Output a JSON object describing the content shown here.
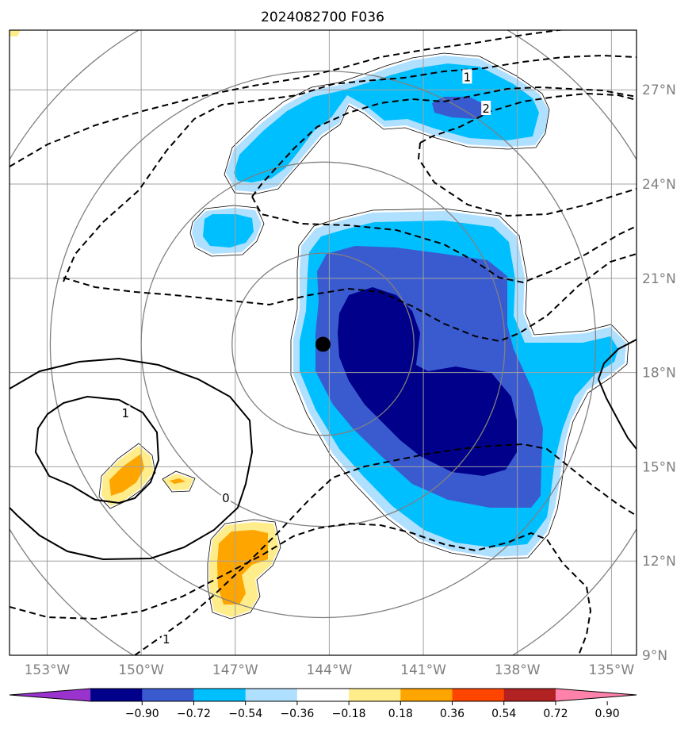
{
  "chart_data": {
    "type": "heatmap",
    "title": "2024082700 F036",
    "x_ticks": [
      "153°W",
      "150°W",
      "147°W",
      "144°W",
      "141°W",
      "138°W",
      "135°W"
    ],
    "y_ticks": [
      "27°N",
      "24°N",
      "21°N",
      "18°N",
      "15°N",
      "12°N",
      "9°N"
    ],
    "x_range": [
      -154.2,
      -134.2
    ],
    "y_range": [
      9,
      28.9
    ],
    "colorbar": {
      "ticks": [
        "−0.90",
        "−0.72",
        "−0.54",
        "−0.36",
        "−0.18",
        "0.18",
        "0.36",
        "0.54",
        "0.72",
        "0.90"
      ],
      "colors": [
        "#9a32cd",
        "#00008b",
        "#3a5bd0",
        "#00bfff",
        "#b0e0ff",
        "#ffffff",
        "#ffec8b",
        "#ffa500",
        "#ff4500",
        "#b22222",
        "#ff82ab"
      ],
      "extend": "both"
    },
    "center_marker": {
      "lon": -144.2,
      "lat": 18.9
    },
    "range_rings": [
      {
        "lon": -144.2,
        "lat": 18.9,
        "radius_deg": 2.9
      },
      {
        "lon": -144.2,
        "lat": 18.9,
        "radius_deg": 5.8
      },
      {
        "lon": -144.2,
        "lat": 18.9,
        "radius_deg": 8.7
      },
      {
        "lon": -144.2,
        "lat": 18.9,
        "radius_deg": 11.6
      }
    ],
    "contour_labels": [
      {
        "text": "1",
        "lon": -139.6,
        "lat": 27.4
      },
      {
        "text": "2",
        "lon": -139.0,
        "lat": 26.4
      },
      {
        "text": "1",
        "lon": -150.5,
        "lat": 16.7
      },
      {
        "text": "0",
        "lon": -147.3,
        "lat": 14.0
      },
      {
        "text": "1",
        "lon": -149.2,
        "lat": 9.5
      }
    ]
  }
}
